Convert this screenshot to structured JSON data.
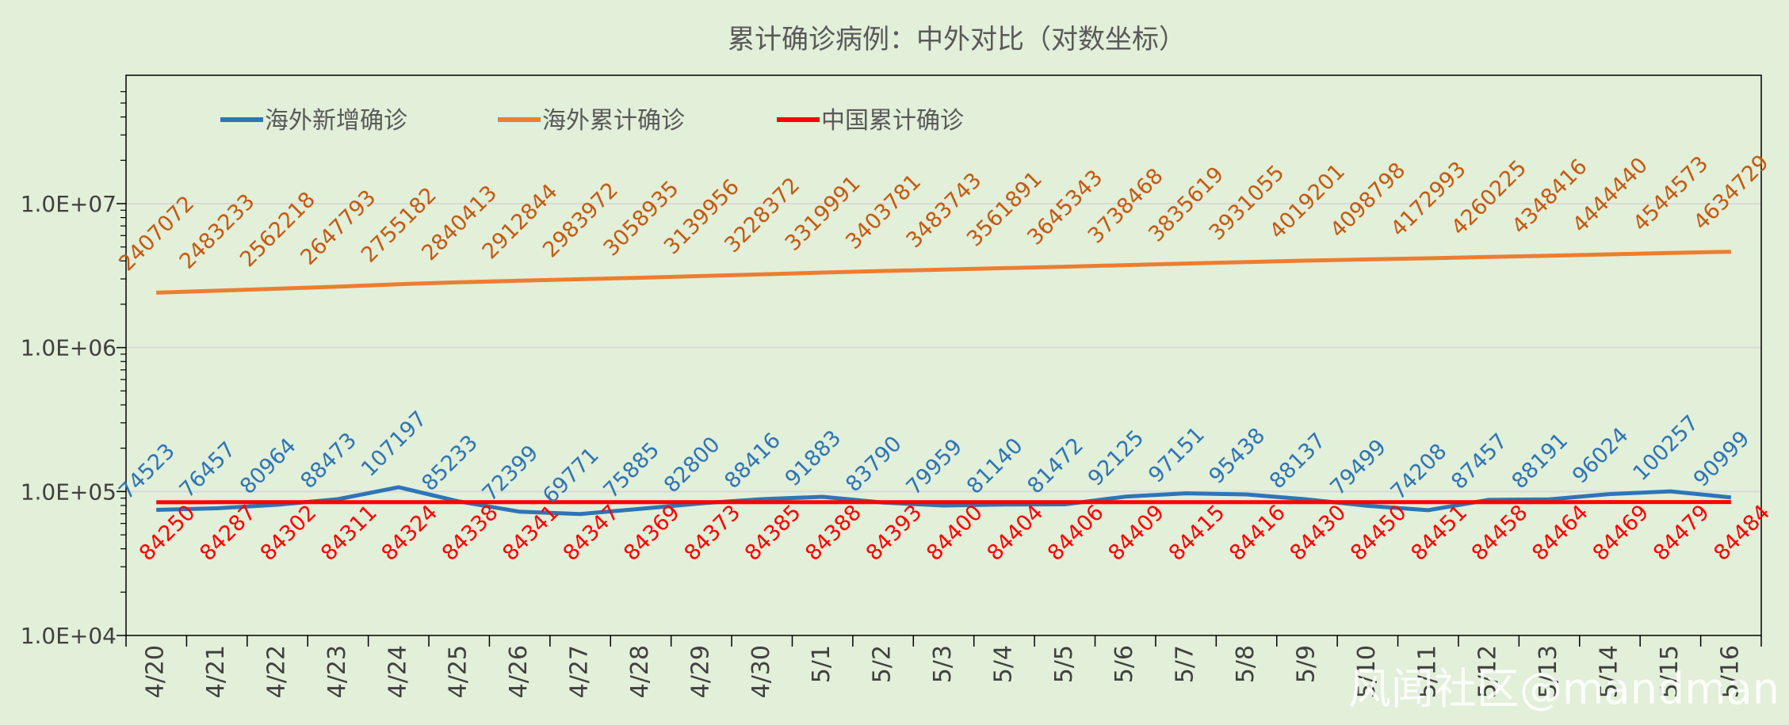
{
  "chart_data": {
    "type": "line",
    "title": "累计确诊病例：中外对比（对数坐标）",
    "xlabel": "",
    "ylabel": "",
    "y_scale": "log",
    "ylim": [
      10000,
      60000000
    ],
    "y_ticks": [
      10000,
      100000,
      1000000,
      10000000
    ],
    "y_tick_labels": [
      "1.0E+04",
      "1.0E+05",
      "1.0E+06",
      "1.0E+07"
    ],
    "grid": true,
    "legend_position": "top-left",
    "categories": [
      "4/20",
      "4/21",
      "4/22",
      "4/23",
      "4/24",
      "4/25",
      "4/26",
      "4/27",
      "4/28",
      "4/29",
      "4/30",
      "5/1",
      "5/2",
      "5/3",
      "5/4",
      "5/5",
      "5/6",
      "5/7",
      "5/8",
      "5/9",
      "5/10",
      "5/11",
      "5/12",
      "5/13",
      "5/14",
      "5/15",
      "5/16"
    ],
    "series": [
      {
        "name": "海外新增确诊",
        "color": "#2e75b6",
        "label_color": "#2e75b6",
        "label_position": "above",
        "values": [
          74523,
          76457,
          80964,
          88473,
          107197,
          85233,
          72399,
          69771,
          75885,
          82800,
          88416,
          91883,
          83790,
          79959,
          81140,
          81472,
          92125,
          97151,
          95438,
          88137,
          79499,
          74208,
          87457,
          88191,
          96024,
          100257,
          90999
        ]
      },
      {
        "name": "海外累计确诊",
        "color": "#ed7d31",
        "label_color": "#c55a11",
        "label_position": "above",
        "values": [
          2407072,
          2483233,
          2562218,
          2647793,
          2755182,
          2840413,
          2912844,
          2983972,
          3058935,
          3139956,
          3228372,
          3319991,
          3403781,
          3483743,
          3561891,
          3645343,
          3738468,
          3835619,
          3931055,
          4019201,
          4098798,
          4172993,
          4260225,
          4348416,
          4444440,
          4544573,
          4634729
        ]
      },
      {
        "name": "中国累计确诊",
        "color": "#ff0000",
        "label_color": "#ff0000",
        "label_position": "below",
        "values": [
          84250,
          84287,
          84302,
          84311,
          84324,
          84338,
          84341,
          84347,
          84369,
          84373,
          84385,
          84388,
          84393,
          84400,
          84404,
          84406,
          84409,
          84415,
          84416,
          84430,
          84450,
          84451,
          84458,
          84464,
          84469,
          84479,
          84484
        ]
      }
    ]
  },
  "watermark": "风闻社区@mandman",
  "colors": {
    "background": "#e2efd9",
    "gridline": "#d9d9d9",
    "axis": "#000000"
  }
}
